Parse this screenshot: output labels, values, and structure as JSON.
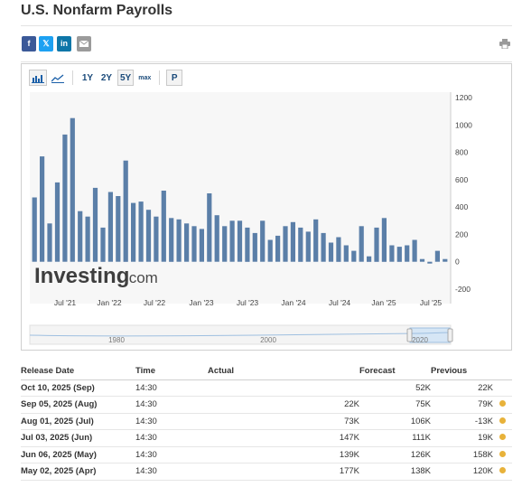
{
  "page": {
    "title": "U.S. Nonfarm Payrolls"
  },
  "share": {
    "facebook": "f",
    "twitter": "𝕏",
    "linkedin": "in"
  },
  "toolbar": {
    "r1": "1Y",
    "r2": "2Y",
    "r3": "5Y",
    "r4": "max",
    "p": "P"
  },
  "chart_data": {
    "type": "bar",
    "color": "#5b7fa8",
    "yticks": [
      1200,
      1000,
      800,
      600,
      400,
      200,
      0,
      -200
    ],
    "ylim": [
      -200,
      1200
    ],
    "xticks": [
      "Jul '21",
      "Jan '22",
      "Jul '22",
      "Jan '23",
      "Jul '23",
      "Jan '24",
      "Jul '24",
      "Jan '25",
      "Jul '25"
    ],
    "values": [
      470,
      770,
      280,
      580,
      930,
      1050,
      370,
      330,
      540,
      250,
      510,
      480,
      740,
      430,
      440,
      380,
      330,
      520,
      320,
      310,
      280,
      260,
      240,
      500,
      340,
      260,
      300,
      300,
      250,
      210,
      300,
      160,
      190,
      260,
      290,
      250,
      220,
      310,
      210,
      140,
      180,
      120,
      80,
      260,
      40,
      250,
      320,
      120,
      110,
      120,
      160,
      20,
      -13,
      80,
      20
    ],
    "watermark": "Investing",
    "watermark_suffix": ".com",
    "navigator_labels": [
      "1980",
      "2000",
      "2020"
    ]
  },
  "table": {
    "headers": {
      "date": "Release Date",
      "time": "Time",
      "actual": "Actual",
      "forecast": "Forecast",
      "previous": "Previous"
    },
    "rows": [
      {
        "date": "Oct 10, 2025 (Sep)",
        "time": "14:30",
        "actual": "",
        "forecast": "52K",
        "previous": "22K"
      },
      {
        "date": "Sep 05, 2025 (Aug)",
        "time": "14:30",
        "actual": "22K",
        "forecast": "75K",
        "previous": "79K"
      },
      {
        "date": "Aug 01, 2025 (Jul)",
        "time": "14:30",
        "actual": "73K",
        "forecast": "106K",
        "previous": "-13K"
      },
      {
        "date": "Jul 03, 2025 (Jun)",
        "time": "14:30",
        "actual": "147K",
        "forecast": "111K",
        "previous": "19K"
      },
      {
        "date": "Jun 06, 2025 (May)",
        "time": "14:30",
        "actual": "139K",
        "forecast": "126K",
        "previous": "158K"
      },
      {
        "date": "May 02, 2025 (Apr)",
        "time": "14:30",
        "actual": "177K",
        "forecast": "138K",
        "previous": "120K"
      }
    ]
  }
}
